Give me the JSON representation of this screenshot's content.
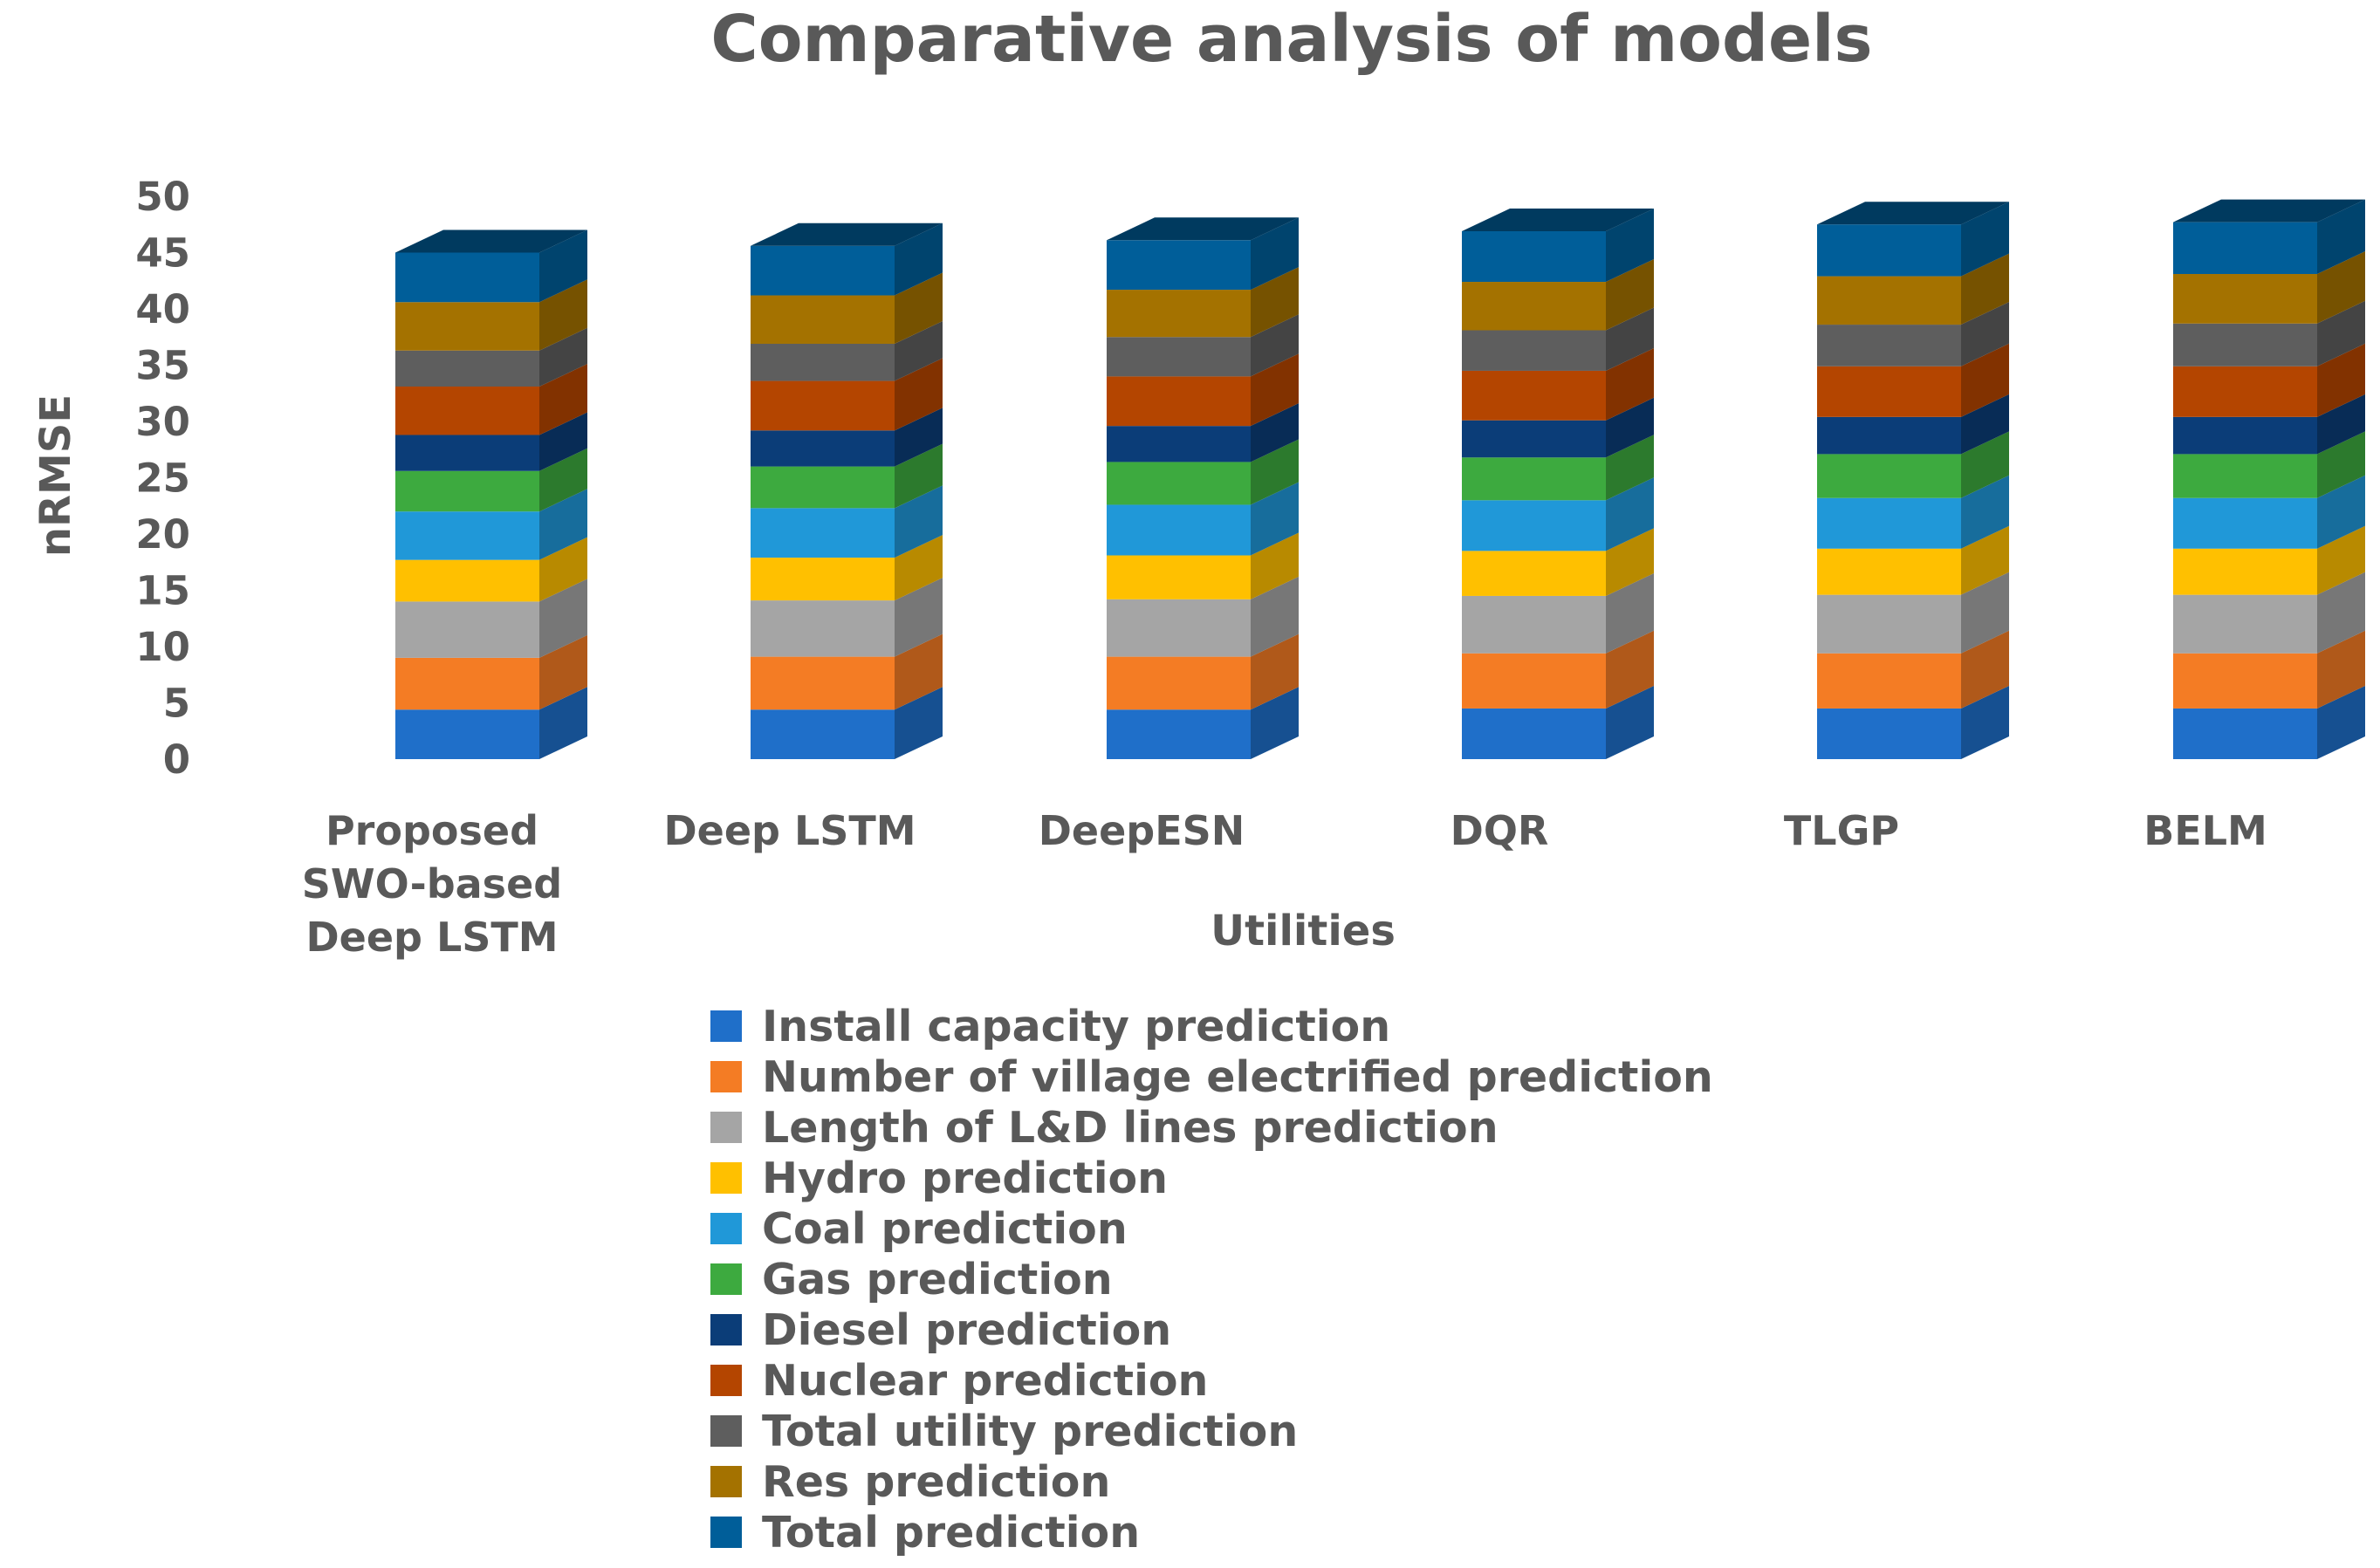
{
  "chart_data": {
    "type": "bar",
    "stacked": true,
    "style": "3d-column",
    "title": "Comparative analysis of models",
    "xlabel": "Utilities",
    "ylabel": "nRMSE",
    "ylim": [
      0,
      50
    ],
    "yticks": [
      0,
      5,
      10,
      15,
      20,
      25,
      30,
      35,
      40,
      45,
      50
    ],
    "categories": [
      [
        "Proposed",
        "SWO-based",
        "Deep LSTM"
      ],
      [
        "Deep LSTM"
      ],
      [
        "DeepESN"
      ],
      [
        "DQR"
      ],
      [
        "TLGP"
      ],
      [
        "BELM"
      ]
    ],
    "legend_position": "bottom",
    "series": [
      {
        "name": "Install capacity prediction",
        "color": "#1F6FC9",
        "values": [
          4.4,
          4.4,
          4.4,
          4.5,
          4.5,
          4.5
        ]
      },
      {
        "name": "Number of village electrified prediction",
        "color": "#F47C24",
        "values": [
          4.6,
          4.7,
          4.7,
          4.9,
          4.9,
          4.9
        ]
      },
      {
        "name": "Length of L&D lines prediction",
        "color": "#A5A5A5",
        "values": [
          5.0,
          5.0,
          5.1,
          5.1,
          5.2,
          5.2
        ]
      },
      {
        "name": "Hydro prediction",
        "color": "#FFC000",
        "values": [
          3.7,
          3.8,
          3.9,
          4.0,
          4.1,
          4.1
        ]
      },
      {
        "name": "Coal prediction",
        "color": "#2098D8",
        "values": [
          4.3,
          4.4,
          4.5,
          4.5,
          4.5,
          4.5
        ]
      },
      {
        "name": "Gas prediction",
        "color": "#3DAA3F",
        "values": [
          3.6,
          3.7,
          3.8,
          3.8,
          3.9,
          3.9
        ]
      },
      {
        "name": "Diesel prediction",
        "color": "#0B3D78",
        "values": [
          3.2,
          3.2,
          3.2,
          3.3,
          3.3,
          3.3
        ]
      },
      {
        "name": "Nuclear prediction",
        "color": "#B44500",
        "values": [
          4.3,
          4.4,
          4.4,
          4.4,
          4.5,
          4.5
        ]
      },
      {
        "name": "Total utility prediction",
        "color": "#5E5E5E",
        "values": [
          3.2,
          3.3,
          3.5,
          3.6,
          3.7,
          3.8
        ]
      },
      {
        "name": "Res prediction",
        "color": "#A47200",
        "values": [
          4.3,
          4.3,
          4.2,
          4.3,
          4.3,
          4.4
        ]
      },
      {
        "name": "Total prediction",
        "color": "#005E99",
        "values": [
          4.4,
          4.4,
          4.4,
          4.5,
          4.6,
          4.6
        ]
      }
    ]
  }
}
